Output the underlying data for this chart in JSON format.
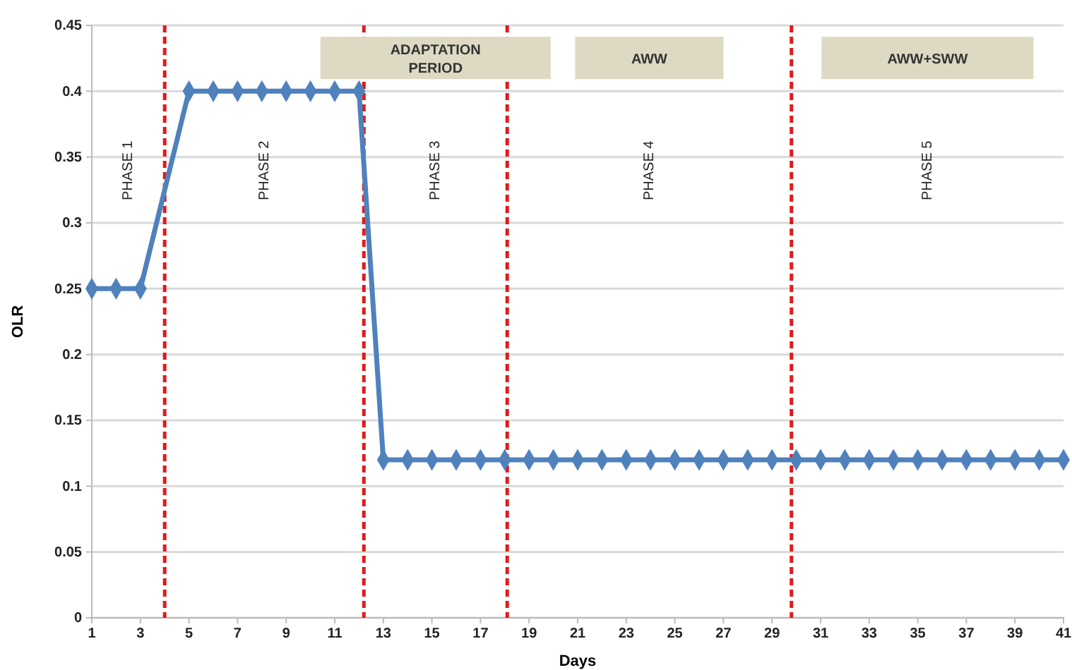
{
  "chart_data": {
    "type": "line",
    "xlabel": "Days",
    "ylabel": "OLR",
    "xlim": [
      1,
      41
    ],
    "xticks": [
      1,
      3,
      5,
      7,
      9,
      11,
      13,
      15,
      17,
      19,
      21,
      23,
      25,
      27,
      29,
      31,
      33,
      35,
      37,
      39,
      41
    ],
    "ylim": [
      0,
      0.45
    ],
    "yticks": [
      0,
      0.05,
      0.1,
      0.15,
      0.2,
      0.25,
      0.3,
      0.35,
      0.4,
      0.45
    ],
    "grid": "y",
    "marker": "diamond",
    "line_style": "solid",
    "series": [
      {
        "color": "#4f81bd",
        "x": [
          1,
          2,
          3,
          5,
          6,
          7,
          8,
          9,
          10,
          11,
          12,
          13,
          14,
          15,
          16,
          17,
          18,
          19,
          20,
          21,
          22,
          23,
          24,
          25,
          26,
          27,
          28,
          29,
          30,
          31,
          32,
          33,
          34,
          35,
          36,
          37,
          38,
          39,
          40,
          41
        ],
        "values": [
          0.25,
          0.25,
          0.25,
          0.4,
          0.4,
          0.4,
          0.4,
          0.4,
          0.4,
          0.4,
          0.4,
          0.12,
          0.12,
          0.12,
          0.12,
          0.12,
          0.12,
          0.12,
          0.12,
          0.12,
          0.12,
          0.12,
          0.12,
          0.12,
          0.12,
          0.12,
          0.12,
          0.12,
          0.12,
          0.12,
          0.12,
          0.12,
          0.12,
          0.12,
          0.12,
          0.12,
          0.12,
          0.12,
          0.12,
          0.12
        ]
      }
    ],
    "ref_lines": [
      {
        "axis": "x",
        "value": 4,
        "color": "#e01b1b",
        "line_style": "dashed"
      },
      {
        "axis": "x",
        "value": 12.2,
        "color": "#e01b1b",
        "line_style": "dashed"
      },
      {
        "axis": "x",
        "value": 18.1,
        "color": "#e01b1b",
        "line_style": "dashed"
      },
      {
        "axis": "x",
        "value": 29.8,
        "color": "#e01b1b",
        "line_style": "dashed"
      }
    ],
    "annotations": [
      "PHASE 1",
      "PHASE 2",
      "PHASE 3",
      "PHASE 4",
      "PHASE 5",
      "ADAPTATION PERIOD",
      "AWW",
      "AWW+SWW"
    ]
  }
}
